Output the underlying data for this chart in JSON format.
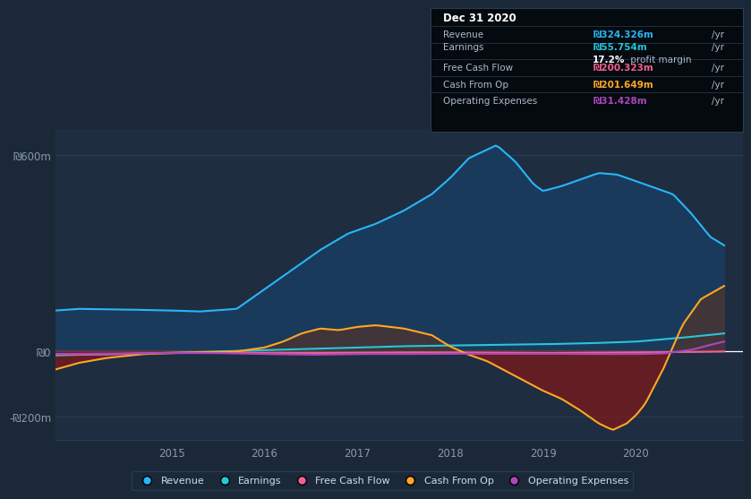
{
  "background_color": "#1b2838",
  "plot_bg_color": "#1e2d40",
  "grid_color": "#2a3f55",
  "ylim": [
    -270,
    680
  ],
  "yticks": [
    -200,
    0,
    600
  ],
  "ytick_labels": [
    "-₪200m",
    "₪0",
    "₪600m"
  ],
  "xlabel_years": [
    "2015",
    "2016",
    "2017",
    "2018",
    "2019",
    "2020"
  ],
  "zero_line_color": "#ffffff",
  "revenue_color": "#29b6f6",
  "revenue_fill": "#1a3a5c",
  "earnings_color": "#26c6da",
  "freecash_color": "#f06292",
  "cashfromop_color": "#ffa726",
  "cashfromop_fill_pos": "#4e342e",
  "cashfromop_fill_neg": "#7b1a1a",
  "opex_color": "#ab47bc",
  "opex_fill_pos": "#6a1b9a",
  "opex_fill_neg": "#4a235a",
  "tooltip_bg": "#050a0f",
  "tooltip_title": "Dec 31 2020",
  "tooltip_revenue_val": "₪324.326m",
  "tooltip_earnings_val": "₪55.754m",
  "tooltip_margin": "17.2%",
  "tooltip_fcf_val": "₪200.323m",
  "tooltip_cashop_val": "₪201.649m",
  "tooltip_opex_val": "₪31.428m",
  "legend_items": [
    "Revenue",
    "Earnings",
    "Free Cash Flow",
    "Cash From Op",
    "Operating Expenses"
  ],
  "legend_colors": [
    "#29b6f6",
    "#26c6da",
    "#f06292",
    "#ffa726",
    "#ab47bc"
  ]
}
